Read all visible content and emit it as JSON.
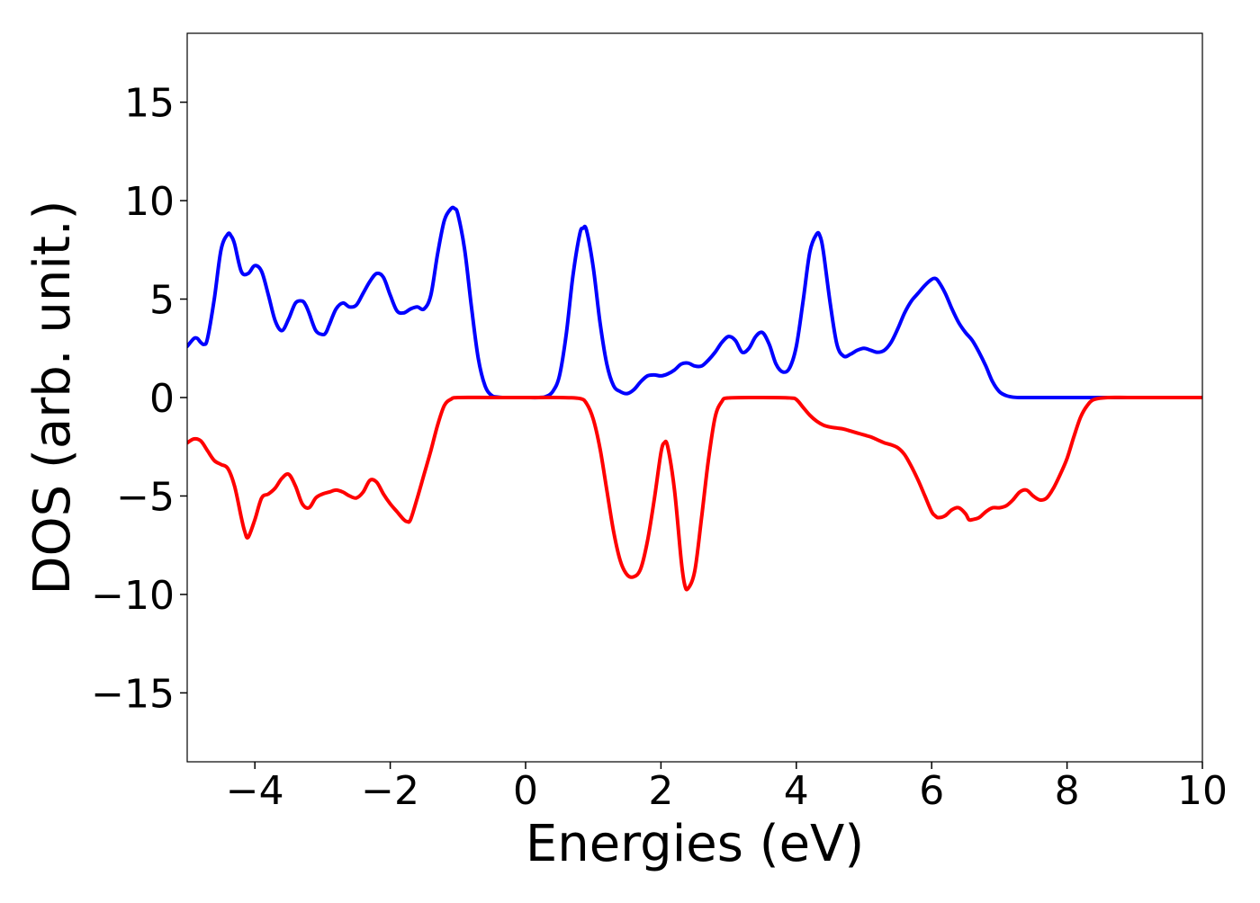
{
  "chart_data": {
    "type": "line",
    "title": "",
    "xlabel": "Energies (eV)",
    "ylabel": "DOS (arb. unit.)",
    "xlim": [
      -5,
      10
    ],
    "ylim": [
      -18.5,
      18.5
    ],
    "grid": false,
    "legend": "none",
    "xticks": [
      -4,
      -2,
      0,
      2,
      4,
      6,
      8,
      10
    ],
    "xtick_labels": [
      "−4",
      "−2",
      "0",
      "2",
      "4",
      "6",
      "8",
      "10"
    ],
    "yticks": [
      15,
      10,
      5,
      0,
      -5,
      -10,
      -15
    ],
    "ytick_labels": [
      "15",
      "10",
      "5",
      "0",
      "−5",
      "−10",
      "−15"
    ],
    "series": [
      {
        "color": "#0000ff",
        "x": [
          -5.0,
          -4.9,
          -4.85,
          -4.8,
          -4.75,
          -4.7,
          -4.6,
          -4.5,
          -4.4,
          -4.35,
          -4.3,
          -4.2,
          -4.1,
          -4.0,
          -3.9,
          -3.8,
          -3.7,
          -3.6,
          -3.5,
          -3.4,
          -3.3,
          -3.25,
          -3.2,
          -3.1,
          -3.0,
          -2.95,
          -2.9,
          -2.8,
          -2.7,
          -2.6,
          -2.5,
          -2.4,
          -2.3,
          -2.2,
          -2.1,
          -2.0,
          -1.9,
          -1.8,
          -1.7,
          -1.6,
          -1.5,
          -1.4,
          -1.3,
          -1.2,
          -1.1,
          -1.05,
          -1.0,
          -0.9,
          -0.8,
          -0.7,
          -0.6,
          -0.5,
          -0.4,
          -0.3,
          -0.2,
          0.0,
          0.2,
          0.3,
          0.4,
          0.5,
          0.6,
          0.7,
          0.8,
          0.85,
          0.9,
          1.0,
          1.1,
          1.2,
          1.3,
          1.4,
          1.5,
          1.6,
          1.7,
          1.8,
          1.9,
          2.0,
          2.1,
          2.2,
          2.3,
          2.4,
          2.5,
          2.6,
          2.7,
          2.8,
          2.9,
          3.0,
          3.1,
          3.2,
          3.3,
          3.4,
          3.5,
          3.6,
          3.7,
          3.8,
          3.9,
          4.0,
          4.1,
          4.2,
          4.3,
          4.35,
          4.4,
          4.5,
          4.6,
          4.7,
          4.8,
          4.9,
          5.0,
          5.1,
          5.2,
          5.3,
          5.4,
          5.5,
          5.6,
          5.7,
          5.8,
          5.9,
          6.0,
          6.05,
          6.1,
          6.2,
          6.3,
          6.4,
          6.5,
          6.6,
          6.7,
          6.8,
          6.9,
          7.0,
          7.1,
          7.2,
          7.3,
          7.5,
          8.0,
          9.0,
          10.0
        ],
        "y": [
          2.6,
          3.0,
          3.0,
          2.8,
          2.7,
          3.0,
          5.0,
          7.5,
          8.3,
          8.2,
          7.8,
          6.4,
          6.3,
          6.7,
          6.4,
          5.2,
          3.9,
          3.4,
          4.0,
          4.8,
          4.9,
          4.7,
          4.3,
          3.4,
          3.2,
          3.3,
          3.7,
          4.5,
          4.8,
          4.6,
          4.7,
          5.3,
          5.9,
          6.3,
          6.1,
          5.2,
          4.4,
          4.3,
          4.5,
          4.6,
          4.5,
          5.2,
          7.3,
          9.0,
          9.6,
          9.6,
          9.3,
          7.5,
          4.6,
          2.0,
          0.6,
          0.1,
          0.02,
          0.0,
          0.0,
          0.0,
          0.0,
          0.05,
          0.3,
          1.1,
          3.2,
          6.2,
          8.3,
          8.6,
          8.5,
          6.6,
          3.8,
          1.7,
          0.6,
          0.3,
          0.2,
          0.4,
          0.8,
          1.1,
          1.15,
          1.1,
          1.2,
          1.4,
          1.7,
          1.75,
          1.6,
          1.6,
          1.9,
          2.3,
          2.8,
          3.1,
          2.9,
          2.3,
          2.5,
          3.1,
          3.3,
          2.7,
          1.7,
          1.3,
          1.5,
          2.6,
          4.9,
          7.4,
          8.3,
          8.2,
          7.4,
          4.8,
          2.7,
          2.1,
          2.2,
          2.4,
          2.5,
          2.4,
          2.3,
          2.4,
          2.8,
          3.5,
          4.3,
          4.9,
          5.3,
          5.7,
          6.0,
          6.05,
          5.9,
          5.3,
          4.5,
          3.8,
          3.3,
          2.9,
          2.3,
          1.6,
          0.8,
          0.3,
          0.1,
          0.02,
          0.0,
          0.0,
          0.0,
          0.0,
          0.0
        ]
      },
      {
        "color": "#ff0000",
        "x": [
          -5.0,
          -4.9,
          -4.8,
          -4.7,
          -4.6,
          -4.5,
          -4.4,
          -4.3,
          -4.2,
          -4.15,
          -4.1,
          -4.0,
          -3.9,
          -3.8,
          -3.7,
          -3.6,
          -3.5,
          -3.4,
          -3.3,
          -3.2,
          -3.1,
          -3.0,
          -2.9,
          -2.8,
          -2.7,
          -2.6,
          -2.5,
          -2.4,
          -2.3,
          -2.2,
          -2.1,
          -2.0,
          -1.9,
          -1.8,
          -1.75,
          -1.7,
          -1.6,
          -1.5,
          -1.4,
          -1.3,
          -1.2,
          -1.1,
          -1.0,
          -0.5,
          0.0,
          0.5,
          0.8,
          0.9,
          1.0,
          1.1,
          1.2,
          1.3,
          1.4,
          1.5,
          1.6,
          1.7,
          1.8,
          1.9,
          2.0,
          2.05,
          2.1,
          2.2,
          2.3,
          2.35,
          2.4,
          2.5,
          2.6,
          2.7,
          2.8,
          2.9,
          3.0,
          3.5,
          3.9,
          4.0,
          4.1,
          4.2,
          4.3,
          4.4,
          4.5,
          4.6,
          4.7,
          4.8,
          4.9,
          5.0,
          5.1,
          5.2,
          5.3,
          5.4,
          5.5,
          5.6,
          5.7,
          5.8,
          5.9,
          6.0,
          6.05,
          6.1,
          6.2,
          6.3,
          6.4,
          6.5,
          6.55,
          6.6,
          6.7,
          6.8,
          6.9,
          7.0,
          7.1,
          7.2,
          7.3,
          7.4,
          7.5,
          7.6,
          7.7,
          7.8,
          7.9,
          8.0,
          8.1,
          8.2,
          8.3,
          8.4,
          8.6,
          9.0,
          10.0
        ],
        "y": [
          -2.3,
          -2.1,
          -2.2,
          -2.7,
          -3.2,
          -3.4,
          -3.6,
          -4.5,
          -6.1,
          -6.8,
          -7.1,
          -6.2,
          -5.1,
          -4.9,
          -4.6,
          -4.1,
          -3.9,
          -4.5,
          -5.4,
          -5.6,
          -5.1,
          -4.9,
          -4.8,
          -4.7,
          -4.8,
          -5.0,
          -5.1,
          -4.8,
          -4.2,
          -4.3,
          -4.9,
          -5.4,
          -5.8,
          -6.2,
          -6.3,
          -6.2,
          -5.1,
          -3.9,
          -2.7,
          -1.4,
          -0.4,
          -0.08,
          0.0,
          0.0,
          0.0,
          0.0,
          -0.05,
          -0.3,
          -1.1,
          -2.6,
          -4.7,
          -6.8,
          -8.3,
          -9.0,
          -9.1,
          -8.7,
          -7.3,
          -5.2,
          -2.8,
          -2.3,
          -2.5,
          -4.7,
          -8.3,
          -9.5,
          -9.7,
          -8.8,
          -6.1,
          -3.2,
          -1.0,
          -0.2,
          -0.02,
          0.0,
          -0.02,
          -0.1,
          -0.5,
          -0.9,
          -1.2,
          -1.4,
          -1.5,
          -1.55,
          -1.6,
          -1.7,
          -1.8,
          -1.9,
          -2.0,
          -2.15,
          -2.3,
          -2.4,
          -2.55,
          -2.9,
          -3.5,
          -4.2,
          -5.0,
          -5.8,
          -6.0,
          -6.1,
          -6.0,
          -5.7,
          -5.6,
          -5.9,
          -6.2,
          -6.2,
          -6.1,
          -5.8,
          -5.6,
          -5.6,
          -5.5,
          -5.2,
          -4.8,
          -4.7,
          -5.0,
          -5.2,
          -5.1,
          -4.6,
          -3.9,
          -3.1,
          -2.0,
          -1.0,
          -0.4,
          -0.1,
          0.0,
          0.0,
          0.0
        ]
      }
    ]
  }
}
